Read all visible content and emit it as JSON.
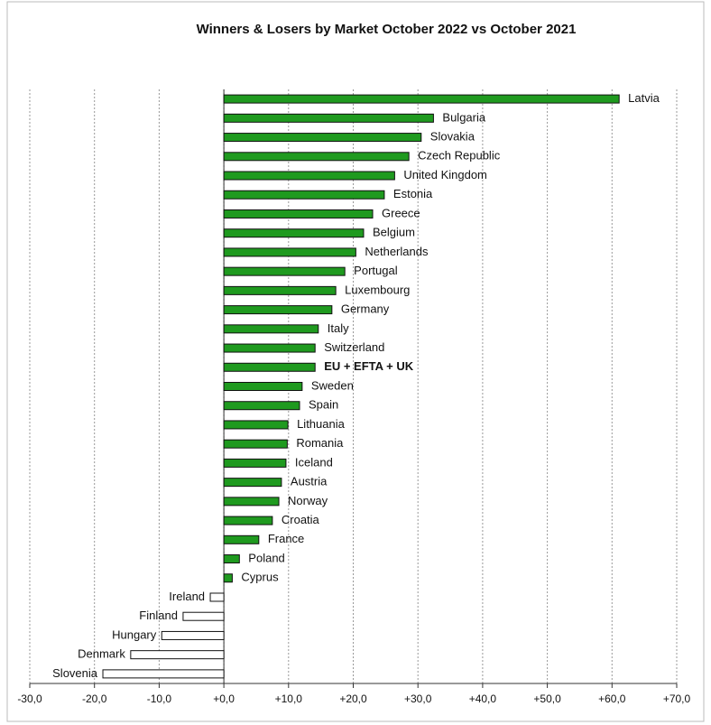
{
  "chart_data": {
    "type": "hbar",
    "title": "Winners & Losers by Market October 2022 vs October 2021",
    "categories": [
      "Latvia",
      "Bulgaria",
      "Slovakia",
      "Czech Republic",
      "United Kingdom",
      "Estonia",
      "Greece",
      "Belgium",
      "Netherlands",
      "Portugal",
      "Luxembourg",
      "Germany",
      "Italy",
      "Switzerland",
      "EU + EFTA + UK",
      "Sweden",
      "Spain",
      "Lithuania",
      "Romania",
      "Iceland",
      "Austria",
      "Norway",
      "Croatia",
      "France",
      "Poland",
      "Cyprus",
      "Ireland",
      "Finland",
      "Hungary",
      "Denmark",
      "Slovenia"
    ],
    "values": [
      61.1,
      32.4,
      30.5,
      28.6,
      26.4,
      24.8,
      23.0,
      21.6,
      20.4,
      18.7,
      17.3,
      16.7,
      14.6,
      14.1,
      14.1,
      12.1,
      11.7,
      9.9,
      9.8,
      9.6,
      8.9,
      8.5,
      7.5,
      5.4,
      2.4,
      1.3,
      -2.1,
      -6.3,
      -9.6,
      -14.4,
      -18.7
    ],
    "color": "#1f9a1f",
    "negative_color": "#ffffff",
    "highlight": [
      14
    ],
    "xlim": [
      -30,
      70
    ],
    "xticks": [
      {
        "value": -30,
        "label": "-30,0"
      },
      {
        "value": -20,
        "label": "-20,0"
      },
      {
        "value": -10,
        "label": "-10,0"
      },
      {
        "value": 0,
        "label": "+0,0"
      },
      {
        "value": 10,
        "label": "+10,0"
      },
      {
        "value": 20,
        "label": "+20,0"
      },
      {
        "value": 30,
        "label": "+30,0"
      },
      {
        "value": 40,
        "label": "+40,0"
      },
      {
        "value": 50,
        "label": "+50,0"
      },
      {
        "value": 60,
        "label": "+60,0"
      },
      {
        "value": 70,
        "label": "+70,0"
      }
    ],
    "grid": true
  }
}
